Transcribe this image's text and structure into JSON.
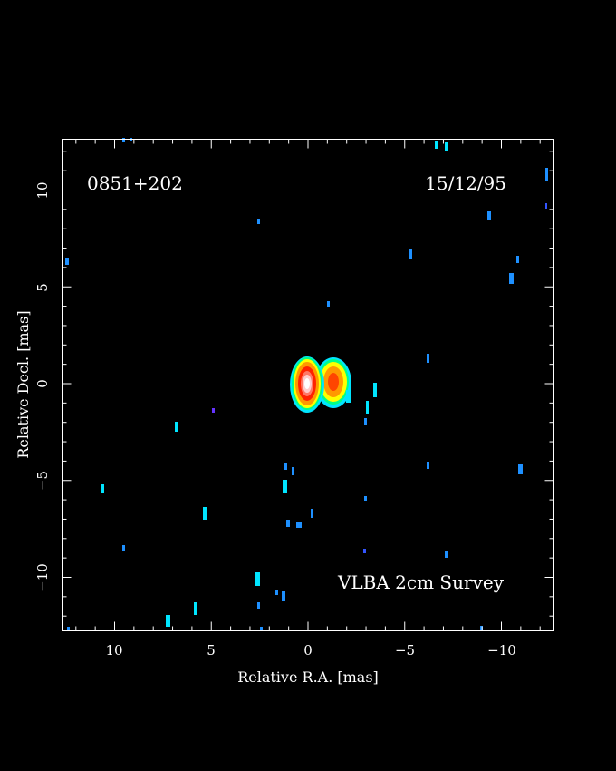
{
  "image": {
    "source_name": "0851+202",
    "epoch": "15/12/95",
    "survey": "VLBA 2cm Survey",
    "xlabel": "Relative R.A. [mas]",
    "ylabel": "Relative Decl. [mas]",
    "x_range_mas": [
      12.75,
      -12.75
    ],
    "y_range_mas": [
      -12.75,
      12.75
    ],
    "x_ticks": [
      "10",
      "5",
      "0",
      "−5",
      "−10"
    ],
    "y_ticks": [
      "−10",
      "−5",
      "0",
      "5",
      "10"
    ],
    "background_color": "#000000",
    "frame_color": "#ffffff",
    "colormap": [
      "#00ffff",
      "#00ff66",
      "#ffff00",
      "#ff8800",
      "#ff2200",
      "#ffffff"
    ],
    "components": [
      {
        "name": "core",
        "ra_mas": 0.0,
        "dec_mas": 0.0,
        "level": 5
      },
      {
        "name": "jet",
        "ra_mas": -1.4,
        "dec_mas": 0.0,
        "level": 3
      }
    ]
  }
}
